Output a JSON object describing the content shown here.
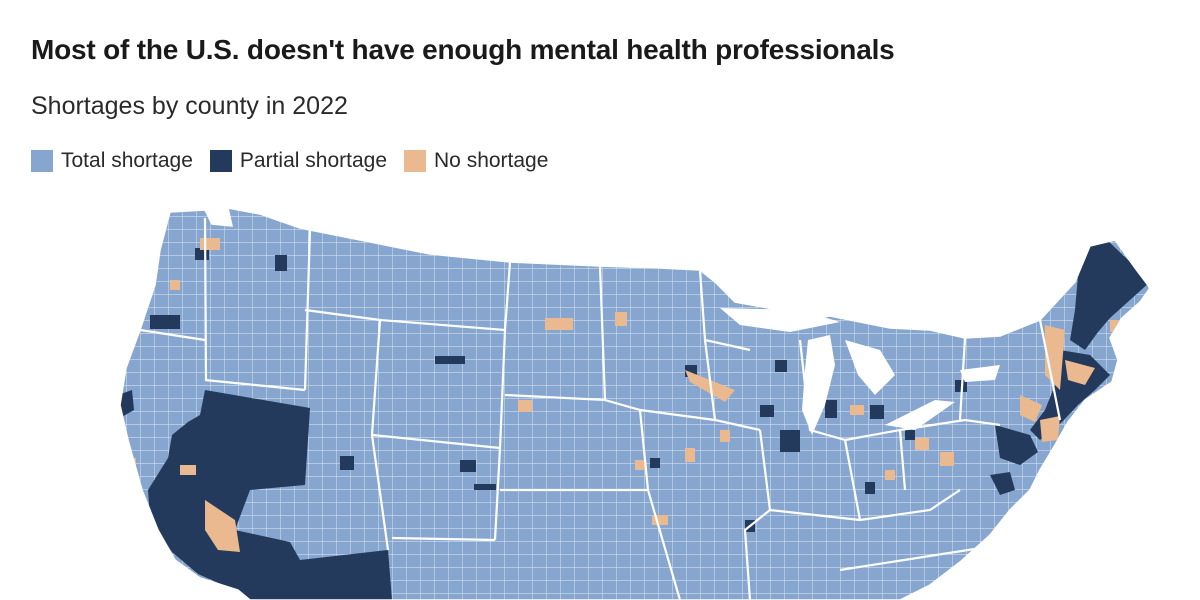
{
  "title": "Most of the U.S. doesn't have enough mental health professionals",
  "subtitle": "Shortages by county in 2022",
  "legend": [
    {
      "label": "Total shortage",
      "color": "#86a6cf"
    },
    {
      "label": "Partial shortage",
      "color": "#233a5c"
    },
    {
      "label": "No shortage",
      "color": "#eab98f"
    }
  ],
  "map": {
    "region": "Contiguous United States",
    "level": "county",
    "background_category": "Total shortage",
    "border_color": "#ffffff"
  }
}
